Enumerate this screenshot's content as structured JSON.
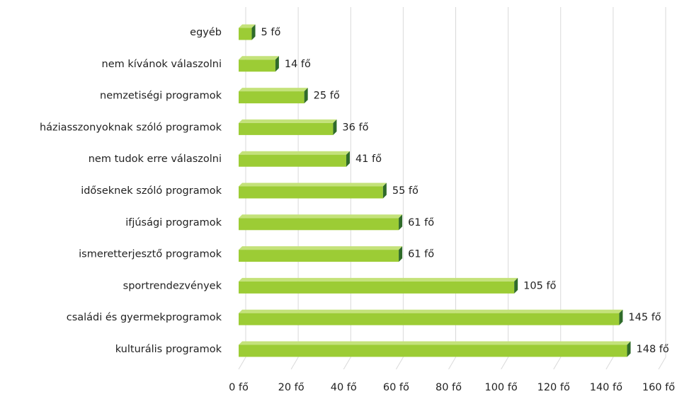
{
  "chart_data": {
    "type": "bar",
    "orientation": "horizontal",
    "categories": [
      "egyéb",
      "nem kívánok válaszolni",
      "nemzetiségi programok",
      "háziasszonyoknak szóló programok",
      "nem tudok erre válaszolni",
      "időseknek szóló programok",
      "ifjúsági programok",
      "ismeretterjesztő programok",
      "sportrendezvények",
      "családi és gyermekprogramok",
      "kulturális programok"
    ],
    "values": [
      5,
      14,
      25,
      36,
      41,
      55,
      61,
      61,
      105,
      145,
      148
    ],
    "value_labels": [
      "5 fő",
      "14 fő",
      "25 fő",
      "36 fő",
      "41 fő",
      "55 fő",
      "61 fő",
      "61 fő",
      "105 fő",
      "145 fő",
      "148 fő"
    ],
    "color": "#9ccc35",
    "xlim": [
      0,
      160
    ],
    "xticks": [
      {
        "value": 0,
        "label": "0 fő"
      },
      {
        "value": 20,
        "label": "20 fő"
      },
      {
        "value": 40,
        "label": "40 fő"
      },
      {
        "value": 60,
        "label": "60 fő"
      },
      {
        "value": 80,
        "label": "80 fő"
      },
      {
        "value": 100,
        "label": "100 fő"
      },
      {
        "value": 120,
        "label": "120 fő"
      },
      {
        "value": 140,
        "label": "140 fő"
      },
      {
        "value": 160,
        "label": "160 fő"
      }
    ],
    "grid": true
  }
}
